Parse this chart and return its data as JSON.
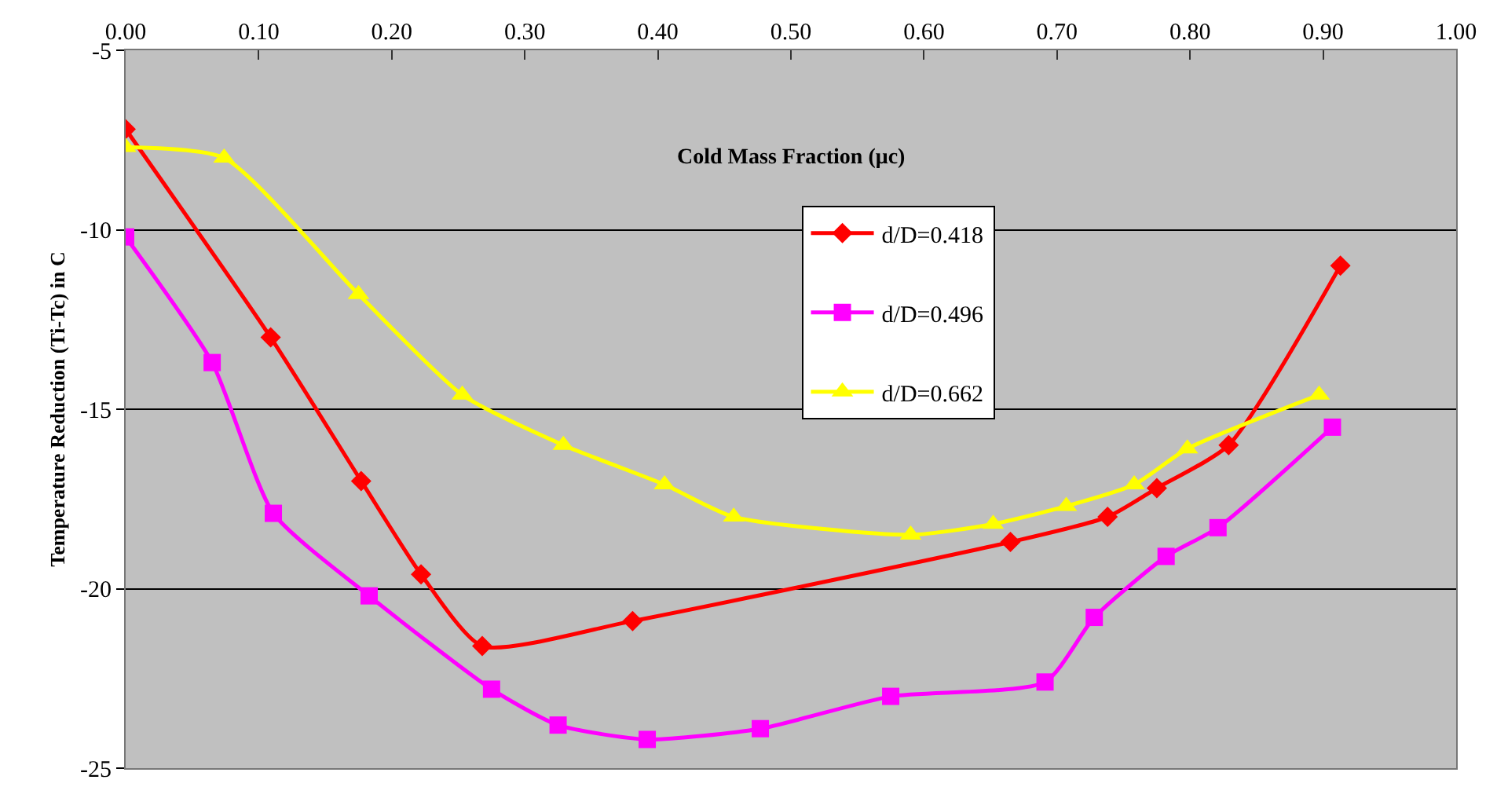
{
  "chart_data": {
    "type": "line",
    "xlabel": "Cold Mass Fraction (μc)",
    "ylabel": "Temperature Reduction (Ti-Tc) in C",
    "xlim": [
      0,
      1
    ],
    "xticks": [
      {
        "value": 0,
        "label": "0.00"
      },
      {
        "value": 0.1,
        "label": "0.10"
      },
      {
        "value": 0.2,
        "label": "0.20"
      },
      {
        "value": 0.3,
        "label": "0.30"
      },
      {
        "value": 0.4,
        "label": "0.40"
      },
      {
        "value": 0.5,
        "label": "0.50"
      },
      {
        "value": 0.6,
        "label": "0.60"
      },
      {
        "value": 0.7,
        "label": "0.70"
      },
      {
        "value": 0.8,
        "label": "0.80"
      },
      {
        "value": 0.9,
        "label": "0.90"
      },
      {
        "value": 1,
        "label": "1.00"
      }
    ],
    "ylim": [
      -25,
      -5
    ],
    "yticks": [
      -25,
      -20,
      -15,
      -10,
      -5
    ],
    "grid": "y",
    "legend": "top",
    "series": [
      {
        "name": "d/D=0.418",
        "color": "#ff0000",
        "marker": "diamond",
        "x": [
          0,
          0.109,
          0.177,
          0.222,
          0.268,
          0.381,
          0.665,
          0.738,
          0.775,
          0.829,
          0.913
        ],
        "values": [
          -7.2,
          -13.0,
          -17.0,
          -19.6,
          -21.6,
          -20.9,
          -18.7,
          -18.0,
          -17.2,
          -16.0,
          -11.0
        ]
      },
      {
        "name": "d/D=0.496",
        "color": "#ff00ff",
        "marker": "square",
        "x": [
          0,
          0.065,
          0.111,
          0.183,
          0.275,
          0.325,
          0.392,
          0.477,
          0.575,
          0.691,
          0.728,
          0.782,
          0.821,
          0.907
        ],
        "values": [
          -10.2,
          -13.7,
          -17.9,
          -20.2,
          -22.8,
          -23.8,
          -24.2,
          -23.9,
          -23.0,
          -22.6,
          -20.8,
          -19.1,
          -18.3,
          -15.5
        ]
      },
      {
        "name": "d/D=0.662",
        "color": "#ffff00",
        "marker": "triangle",
        "x": [
          0,
          0.074,
          0.175,
          0.253,
          0.329,
          0.405,
          0.457,
          0.59,
          0.652,
          0.707,
          0.758,
          0.798,
          0.897
        ],
        "values": [
          -7.7,
          -8.0,
          -11.8,
          -14.6,
          -16.0,
          -17.1,
          -18.0,
          -18.5,
          -18.2,
          -17.7,
          -17.1,
          -16.1,
          -14.6
        ]
      }
    ]
  }
}
